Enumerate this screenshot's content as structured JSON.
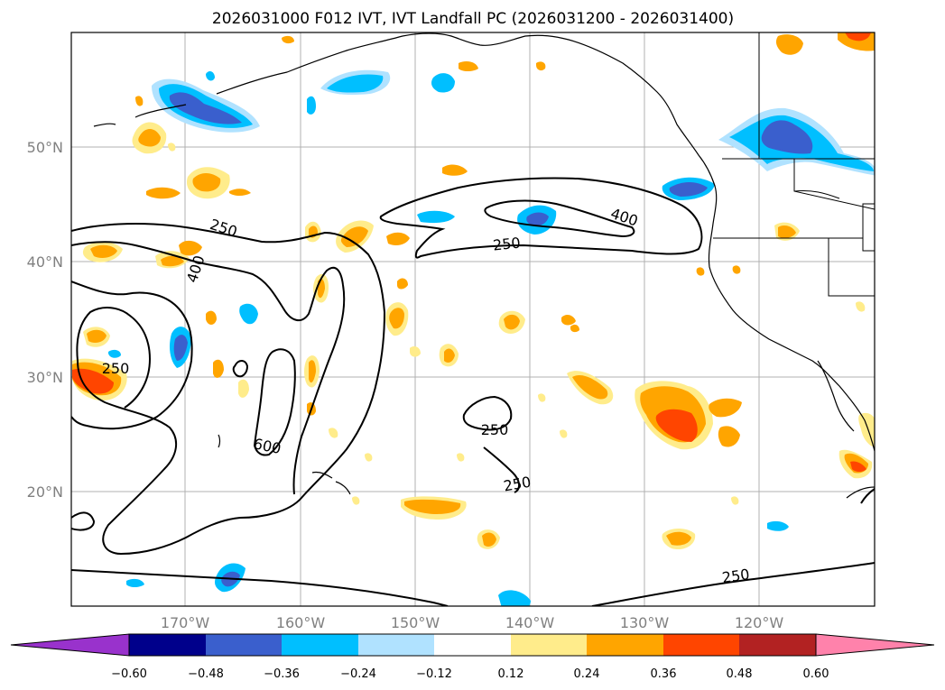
{
  "title": "2026031000 F012 IVT, IVT Landfall PC (2026031200 - 2026031400)",
  "lat_labels": [
    "50°N",
    "40°N",
    "30°N",
    "20°N"
  ],
  "lon_labels": [
    "170°W",
    "160°W",
    "150°W",
    "140°W",
    "130°W",
    "120°W"
  ],
  "colorbar": {
    "ticks": [
      "−0.60",
      "−0.48",
      "−0.36",
      "−0.24",
      "−0.12",
      "0.12",
      "0.24",
      "0.36",
      "0.48",
      "0.60"
    ],
    "colors": [
      "#9932cc",
      "#00008b",
      "#3a5fcd",
      "#00bfff",
      "#b0e2ff",
      "#ffffff",
      "#ffec8b",
      "#ffa500",
      "#ff4500",
      "#b22222",
      "#ff82ab"
    ]
  },
  "ivt_contour_labels": [
    "250",
    "400",
    "250",
    "400",
    "250",
    "600",
    "250",
    "250",
    "250"
  ]
}
